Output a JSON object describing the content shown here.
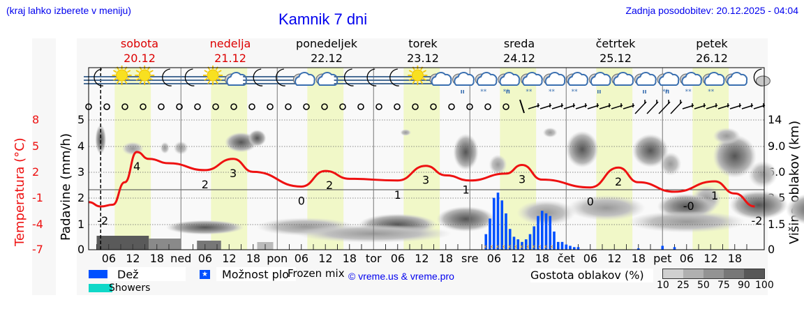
{
  "header": {
    "menu_hint": "(kraj lahko izberete v meniju)",
    "title": "Kamnik 7 dni",
    "last_update": "Zadnja posodobitev: 20.12.2025 - 04:04"
  },
  "days": [
    {
      "name": "sobota",
      "date": "20.12",
      "color": "#dd0000"
    },
    {
      "name": "nedelja",
      "date": "21.12",
      "color": "#dd0000"
    },
    {
      "name": "ponedeljek",
      "date": "22.12",
      "color": "#000000"
    },
    {
      "name": "torek",
      "date": "23.12",
      "color": "#000000"
    },
    {
      "name": "sreda",
      "date": "24.12",
      "color": "#000000"
    },
    {
      "name": "četrtek",
      "date": "25.12",
      "color": "#000000"
    },
    {
      "name": "petek",
      "date": "26.12",
      "color": "#000000"
    }
  ],
  "axes": {
    "temp_label": "Temperatura (°C)",
    "temp_ticks": [
      "8",
      "5",
      "2",
      "-1",
      "-4",
      "-7"
    ],
    "precip_label": "Padavine (mm/h)",
    "precip_ticks": [
      "5",
      "4",
      "3",
      "2",
      "1",
      "0"
    ],
    "cloud_label": "Višina oblakov (km)",
    "cloud_ticks": [
      "14",
      "9.0",
      "6.0",
      "3.5",
      "1.5",
      "0"
    ],
    "x_ticks": [
      "06",
      "12",
      "18",
      "ned",
      "06",
      "12",
      "18",
      "pon",
      "06",
      "12",
      "18",
      "tor",
      "06",
      "12",
      "18",
      "sre",
      "06",
      "12",
      "18",
      "čet",
      "06",
      "12",
      "18",
      "pet",
      "06",
      "12",
      "18"
    ]
  },
  "legend": {
    "rain": "Dež",
    "showers": "Showers",
    "possible_showers": "Možnost plo",
    "frozen_mix": "Frozen mix",
    "copyright": "© vreme.us & vreme.pro",
    "cloud_density_label": "Gostota oblakov (%)",
    "cloud_density_ticks": [
      "10",
      "25",
      "50",
      "75",
      "90",
      "100"
    ],
    "rain_color": "#0050ff",
    "showers_color": "#10d8c8"
  },
  "weather_icons": [
    "moon-fog",
    "sun-fog",
    "sun-fog",
    "moon-fog",
    "moon-fog",
    "sun-fog",
    "cloudy",
    "moon-fog",
    "moon-fog",
    "cloudy",
    "cloudy",
    "moon-fog",
    "moon-fog",
    "moon-fog",
    "sun-fog",
    "cloudy",
    "cloudy-rain",
    "cloudy-snow",
    "cloudy-sleet",
    "cloudy-snow",
    "cloudy-snow",
    "cloudy-snow",
    "cloudy-rain",
    "cloudy",
    "cloudy-rain",
    "cloudy-sleet",
    "cloudy-snow",
    "cloudy-snow",
    "cloudy",
    "moon-cloud"
  ],
  "chart_data": {
    "type": "line",
    "title": "Kamnik 7 dni",
    "xlabel": "",
    "ylabel": "Temperatura (°C) / Padavine (mm/h)",
    "x_range": [
      "20.12 01:00",
      "26.12 23:00"
    ],
    "now_marker": "20.12 04:00",
    "grid": true,
    "series": [
      {
        "name": "Temperatura (°C)",
        "color": "#ee1111",
        "points": [
          {
            "t": "20.12 01",
            "v": -1.5
          },
          {
            "t": "20.12 04",
            "v": -2.0
          },
          {
            "t": "20.12 07",
            "v": -1.8
          },
          {
            "t": "20.12 10",
            "v": 0.8
          },
          {
            "t": "20.12 13",
            "v": 4.3
          },
          {
            "t": "20.12 16",
            "v": 3.5
          },
          {
            "t": "20.12 21",
            "v": 3.0
          },
          {
            "t": "21.12 06",
            "v": 2.2
          },
          {
            "t": "21.12 13",
            "v": 3.5
          },
          {
            "t": "21.12 18",
            "v": 2.0
          },
          {
            "t": "22.12 06",
            "v": 0.3
          },
          {
            "t": "22.12 12",
            "v": 2.1
          },
          {
            "t": "22.12 18",
            "v": 1.2
          },
          {
            "t": "23.12 06",
            "v": 1.0
          },
          {
            "t": "23.12 13",
            "v": 2.7
          },
          {
            "t": "23.12 18",
            "v": 1.6
          },
          {
            "t": "24.12 00",
            "v": 1.0
          },
          {
            "t": "24.12 09",
            "v": 1.8
          },
          {
            "t": "24.12 13",
            "v": 2.8
          },
          {
            "t": "24.12 18",
            "v": 1.1
          },
          {
            "t": "25.12 06",
            "v": 0.2
          },
          {
            "t": "25.12 13",
            "v": 2.5
          },
          {
            "t": "25.12 18",
            "v": 0.8
          },
          {
            "t": "26.12 03",
            "v": -0.3
          },
          {
            "t": "26.12 13",
            "v": 0.9
          },
          {
            "t": "26.12 18",
            "v": -0.5
          },
          {
            "t": "26.12 23",
            "v": -2.0
          }
        ]
      },
      {
        "name": "Dež (mm/h)",
        "color": "#0050ff",
        "type": "bar",
        "points": [
          {
            "t": "24.12 04",
            "v": 0.6
          },
          {
            "t": "24.12 05",
            "v": 1.2
          },
          {
            "t": "24.12 06",
            "v": 2.0
          },
          {
            "t": "24.12 07",
            "v": 2.2
          },
          {
            "t": "24.12 08",
            "v": 1.9
          },
          {
            "t": "24.12 09",
            "v": 1.4
          },
          {
            "t": "24.12 10",
            "v": 0.8
          },
          {
            "t": "24.12 11",
            "v": 0.5
          },
          {
            "t": "24.12 12",
            "v": 0.4
          },
          {
            "t": "24.12 13",
            "v": 0.3
          },
          {
            "t": "24.12 14",
            "v": 0.4
          },
          {
            "t": "24.12 15",
            "v": 0.6
          },
          {
            "t": "24.12 16",
            "v": 0.9
          },
          {
            "t": "24.12 17",
            "v": 1.3
          },
          {
            "t": "24.12 18",
            "v": 1.5
          },
          {
            "t": "24.12 19",
            "v": 1.4
          },
          {
            "t": "24.12 20",
            "v": 1.3
          },
          {
            "t": "24.12 21",
            "v": 0.7
          },
          {
            "t": "24.12 22",
            "v": 0.3
          },
          {
            "t": "24.12 23",
            "v": 0.3
          },
          {
            "t": "25.12 00",
            "v": 0.2
          },
          {
            "t": "25.12 01",
            "v": 0.15
          },
          {
            "t": "25.12 02",
            "v": 0.1
          },
          {
            "t": "25.12 03",
            "v": 0.1
          },
          {
            "t": "25.12 18",
            "v": 0.05
          },
          {
            "t": "26.12 00",
            "v": 0.15
          },
          {
            "t": "26.12 03",
            "v": 0.1
          }
        ]
      }
    ],
    "temp_value_labels": [
      {
        "t": "20.12 04",
        "label": "-2"
      },
      {
        "t": "20.12 13",
        "label": "4"
      },
      {
        "t": "21.12 06",
        "label": "2"
      },
      {
        "t": "21.12 13",
        "label": "3"
      },
      {
        "t": "22.12 06",
        "label": "0"
      },
      {
        "t": "22.12 13",
        "label": "2"
      },
      {
        "t": "23.12 06",
        "label": "1"
      },
      {
        "t": "23.12 13",
        "label": "3"
      },
      {
        "t": "23.12 23",
        "label": "1"
      },
      {
        "t": "24.12 13",
        "label": "3"
      },
      {
        "t": "25.12 06",
        "label": "0"
      },
      {
        "t": "25.12 13",
        "label": "2"
      },
      {
        "t": "26.12 06",
        "label": "-0"
      },
      {
        "t": "26.12 13",
        "label": "1"
      },
      {
        "t": "26.12 23",
        "label": "-2"
      }
    ],
    "temp_ylim": [
      -7,
      8
    ],
    "precip_ylim": [
      0,
      5
    ],
    "cloud_height_ticks_km": [
      0,
      1.5,
      3.5,
      6.0,
      9.0,
      14
    ]
  }
}
